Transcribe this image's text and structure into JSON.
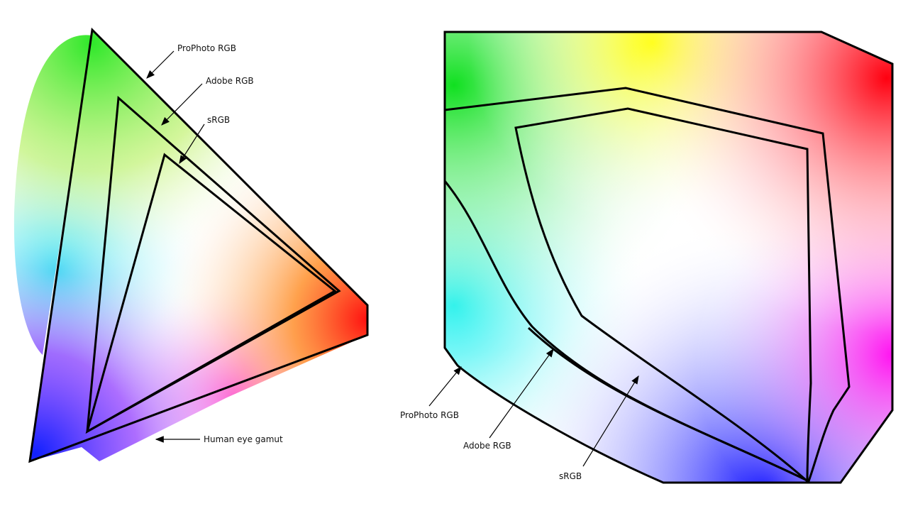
{
  "left_diagram": {
    "labels": [
      "ProPhoto RGB",
      "Adobe RGB",
      "sRGB",
      "Human eye gamut"
    ]
  },
  "right_diagram": {
    "labels": [
      "ProPhoto RGB",
      "Adobe RGB",
      "sRGB"
    ]
  }
}
